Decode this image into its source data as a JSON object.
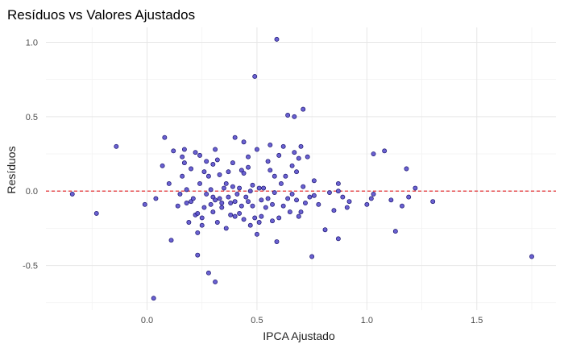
{
  "chart_data": {
    "type": "scatter",
    "title": "Resíduos vs Valores Ajustados",
    "xlabel": "IPCA Ajustado",
    "ylabel": "Resíduos",
    "xlim": [
      -0.46,
      1.86
    ],
    "ylim": [
      -0.8,
      1.1
    ],
    "x_ticks": [
      0.0,
      0.5,
      1.0,
      1.5
    ],
    "x_tick_labels": [
      "0.0",
      "0.5",
      "1.0",
      "1.5"
    ],
    "y_ticks": [
      -0.5,
      0.0,
      0.5,
      1.0
    ],
    "y_tick_labels": [
      "-0.5",
      "0.0",
      "0.5",
      "1.0"
    ],
    "grid": true,
    "reference_line": {
      "y": 0,
      "style": "dashed",
      "color": "#e31a1c"
    },
    "point_fill": "#5a50cc",
    "point_stroke": "#1a1470",
    "points": [
      [
        -0.34,
        -0.02
      ],
      [
        -0.23,
        -0.15
      ],
      [
        -0.14,
        0.3
      ],
      [
        -0.01,
        -0.09
      ],
      [
        0.03,
        -0.72
      ],
      [
        0.04,
        -0.05
      ],
      [
        0.07,
        0.17
      ],
      [
        0.08,
        0.36
      ],
      [
        0.1,
        0.05
      ],
      [
        0.11,
        -0.33
      ],
      [
        0.12,
        0.27
      ],
      [
        0.14,
        -0.1
      ],
      [
        0.15,
        -0.02
      ],
      [
        0.16,
        0.23
      ],
      [
        0.16,
        0.1
      ],
      [
        0.17,
        0.28
      ],
      [
        0.17,
        0.19
      ],
      [
        0.18,
        0.01
      ],
      [
        0.18,
        -0.08
      ],
      [
        0.19,
        -0.21
      ],
      [
        0.2,
        -0.07
      ],
      [
        0.2,
        0.15
      ],
      [
        0.21,
        -0.05
      ],
      [
        0.22,
        -0.16
      ],
      [
        0.22,
        0.26
      ],
      [
        0.23,
        -0.15
      ],
      [
        0.23,
        -0.28
      ],
      [
        0.23,
        -0.43
      ],
      [
        0.24,
        0.24
      ],
      [
        0.24,
        0.05
      ],
      [
        0.25,
        -0.18
      ],
      [
        0.25,
        -0.23
      ],
      [
        0.26,
        -0.11
      ],
      [
        0.26,
        0.13
      ],
      [
        0.27,
        -0.02
      ],
      [
        0.27,
        0.2
      ],
      [
        0.28,
        -0.55
      ],
      [
        0.28,
        0.1
      ],
      [
        0.29,
        -0.09
      ],
      [
        0.29,
        0.01
      ],
      [
        0.3,
        0.18
      ],
      [
        0.3,
        -0.04
      ],
      [
        0.3,
        -0.14
      ],
      [
        0.31,
        0.28
      ],
      [
        0.31,
        -0.06
      ],
      [
        0.31,
        -0.61
      ],
      [
        0.32,
        -0.21
      ],
      [
        0.32,
        0.21
      ],
      [
        0.33,
        0.11
      ],
      [
        0.33,
        -0.05
      ],
      [
        0.34,
        -0.11
      ],
      [
        0.34,
        -0.08
      ],
      [
        0.35,
        0.02
      ],
      [
        0.36,
        0.05
      ],
      [
        0.36,
        -0.25
      ],
      [
        0.37,
        0.13
      ],
      [
        0.37,
        -0.04
      ],
      [
        0.38,
        -0.16
      ],
      [
        0.38,
        -0.08
      ],
      [
        0.39,
        0.03
      ],
      [
        0.39,
        0.19
      ],
      [
        0.4,
        0.36
      ],
      [
        0.4,
        -0.17
      ],
      [
        0.4,
        -0.07
      ],
      [
        0.41,
        -0.02
      ],
      [
        0.42,
        0.02
      ],
      [
        0.42,
        -0.15
      ],
      [
        0.43,
        0.14
      ],
      [
        0.43,
        -0.1
      ],
      [
        0.44,
        0.33
      ],
      [
        0.44,
        0.12
      ],
      [
        0.44,
        -0.19
      ],
      [
        0.45,
        -0.04
      ],
      [
        0.46,
        0.16
      ],
      [
        0.46,
        -0.07
      ],
      [
        0.46,
        0.23
      ],
      [
        0.47,
        -0.23
      ],
      [
        0.47,
        0.0
      ],
      [
        0.48,
        0.04
      ],
      [
        0.48,
        -0.1
      ],
      [
        0.49,
        0.77
      ],
      [
        0.49,
        -0.18
      ],
      [
        0.5,
        -0.29
      ],
      [
        0.5,
        0.28
      ],
      [
        0.51,
        0.02
      ],
      [
        0.51,
        -0.21
      ],
      [
        0.52,
        -0.06
      ],
      [
        0.52,
        -0.17
      ],
      [
        0.53,
        0.02
      ],
      [
        0.54,
        -0.11
      ],
      [
        0.55,
        0.2
      ],
      [
        0.55,
        -0.05
      ],
      [
        0.56,
        0.31
      ],
      [
        0.56,
        0.14
      ],
      [
        0.57,
        -0.2
      ],
      [
        0.57,
        -0.09
      ],
      [
        0.58,
        0.1
      ],
      [
        0.58,
        -0.01
      ],
      [
        0.59,
        -0.34
      ],
      [
        0.59,
        1.02
      ],
      [
        0.6,
        0.24
      ],
      [
        0.6,
        -0.18
      ],
      [
        0.61,
        0.05
      ],
      [
        0.62,
        -0.1
      ],
      [
        0.62,
        0.3
      ],
      [
        0.63,
        0.1
      ],
      [
        0.64,
        0.51
      ],
      [
        0.64,
        -0.05
      ],
      [
        0.65,
        -0.14
      ],
      [
        0.66,
        0.17
      ],
      [
        0.66,
        -0.02
      ],
      [
        0.67,
        0.5
      ],
      [
        0.67,
        0.26
      ],
      [
        0.68,
        -0.06
      ],
      [
        0.68,
        0.13
      ],
      [
        0.69,
        0.22
      ],
      [
        0.69,
        -0.17
      ],
      [
        0.7,
        0.3
      ],
      [
        0.7,
        -0.14
      ],
      [
        0.71,
        0.55
      ],
      [
        0.71,
        0.03
      ],
      [
        0.72,
        -0.08
      ],
      [
        0.73,
        0.23
      ],
      [
        0.74,
        -0.04
      ],
      [
        0.75,
        -0.44
      ],
      [
        0.76,
        0.07
      ],
      [
        0.76,
        -0.03
      ],
      [
        0.78,
        -0.09
      ],
      [
        0.81,
        -0.26
      ],
      [
        0.83,
        -0.01
      ],
      [
        0.85,
        -0.13
      ],
      [
        0.87,
        0.05
      ],
      [
        0.87,
        0.0
      ],
      [
        0.87,
        -0.32
      ],
      [
        0.89,
        -0.04
      ],
      [
        0.91,
        -0.11
      ],
      [
        0.92,
        -0.07
      ],
      [
        1.0,
        -0.09
      ],
      [
        1.02,
        -0.05
      ],
      [
        1.03,
        0.25
      ],
      [
        1.03,
        -0.02
      ],
      [
        1.08,
        0.27
      ],
      [
        1.11,
        -0.06
      ],
      [
        1.13,
        -0.27
      ],
      [
        1.16,
        -0.1
      ],
      [
        1.18,
        0.15
      ],
      [
        1.19,
        -0.04
      ],
      [
        1.22,
        0.02
      ],
      [
        1.3,
        -0.07
      ],
      [
        1.75,
        -0.44
      ]
    ]
  }
}
